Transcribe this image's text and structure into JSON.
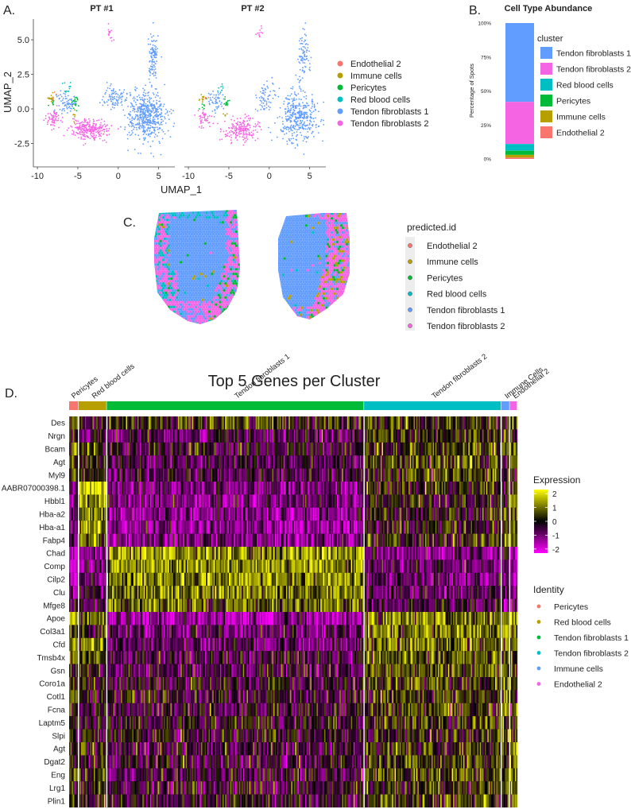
{
  "panel_labels": {
    "a": "A.",
    "b": "B.",
    "c": "C.",
    "d": "D."
  },
  "colors": {
    "endothelial": "#F8766D",
    "immune": "#B79F00",
    "pericytes": "#00BA38",
    "rbc": "#00BFC4",
    "tf1": "#619CFF",
    "tf2": "#F564E3",
    "heat_low": "#FF00FF",
    "heat_mid": "#000000",
    "heat_high": "#FFFF00"
  },
  "chart_data": [
    {
      "id": "umap",
      "type": "scatter",
      "facets": [
        "PT #1",
        "PT #2"
      ],
      "xlabel": "UMAP_1",
      "ylabel": "UMAP_2",
      "xticks": [
        -10,
        -5,
        0,
        5
      ],
      "yticks": [
        5.0,
        2.5,
        0.0,
        -2.5
      ],
      "xticks_labels": [
        "-10",
        "-5",
        "0",
        "5"
      ],
      "yticks_labels": [
        "5.0",
        "2.5",
        "0.0",
        "-2.5"
      ],
      "xlim": [
        -10.5,
        7
      ],
      "ylim": [
        -4.2,
        6.5
      ],
      "legend": [
        "Endothelial 2",
        "Immune cells",
        "Pericytes",
        "Red blood cells",
        "Tendon fibroblasts 1",
        "Tendon fibroblasts 2"
      ],
      "clusters": [
        {
          "name": "Tendon fibroblasts 1",
          "color": "tf1",
          "centers": [
            [
              3.5,
              -0.5
            ],
            [
              -6.5,
              0.5
            ],
            [
              4.3,
              3.8
            ],
            [
              -0.5,
              0.8
            ]
          ],
          "spread": [
            [
              2.2,
              1.6
            ],
            [
              1.0,
              0.7
            ],
            [
              0.6,
              1.5
            ],
            [
              1.2,
              0.8
            ]
          ],
          "n": [
            520,
            70,
            110,
            90
          ]
        },
        {
          "name": "Tendon fibroblasts 2",
          "color": "tf2",
          "centers": [
            [
              -3.5,
              -1.5
            ],
            [
              -8.0,
              -0.8
            ],
            [
              -1.0,
              5.5
            ]
          ],
          "spread": [
            [
              2.2,
              0.7
            ],
            [
              0.8,
              0.6
            ],
            [
              0.4,
              0.5
            ]
          ],
          "n": [
            260,
            60,
            15
          ]
        },
        {
          "name": "Pericytes",
          "color": "pericytes",
          "centers": [
            [
              -5.3,
              0.5
            ],
            [
              -8.2,
              0.4
            ]
          ],
          "spread": [
            [
              0.35,
              0.4
            ],
            [
              0.4,
              0.3
            ]
          ],
          "n": [
            18,
            10
          ]
        },
        {
          "name": "Immune cells",
          "color": "immune",
          "centers": [
            [
              -8.3,
              0.8
            ],
            [
              -5.5,
              -0.5
            ]
          ],
          "spread": [
            [
              0.4,
              0.3
            ],
            [
              0.3,
              0.4
            ]
          ],
          "n": [
            14,
            8
          ]
        },
        {
          "name": "Red blood cells",
          "color": "rbc",
          "centers": [
            [
              -6.3,
              1.5
            ]
          ],
          "spread": [
            [
              0.5,
              0.5
            ]
          ],
          "n": [
            12
          ]
        },
        {
          "name": "Endothelial 2",
          "color": "endothelial",
          "centers": [
            [
              -7.8,
              0.9
            ]
          ],
          "spread": [
            [
              0.3,
              0.3
            ]
          ],
          "n": [
            4
          ]
        }
      ]
    },
    {
      "id": "abundance",
      "type": "bar",
      "stacked": true,
      "title": "Cell Type Abundance",
      "ylabel": "Percentage of Spots",
      "yticks": [
        "100%",
        "75%",
        "50%",
        "25%",
        "0%"
      ],
      "legend_title": "cluster",
      "series": [
        {
          "name": "Tendon fibroblasts 1",
          "color": "tf1",
          "value": 58
        },
        {
          "name": "Tendon fibroblasts 2",
          "color": "tf2",
          "value": 31
        },
        {
          "name": "Red blood cells",
          "color": "rbc",
          "value": 5
        },
        {
          "name": "Pericytes",
          "color": "pericytes",
          "value": 3
        },
        {
          "name": "Immune cells",
          "color": "immune",
          "value": 2
        },
        {
          "name": "Endothelial 2",
          "color": "endothelial",
          "value": 1
        }
      ]
    },
    {
      "id": "spatial",
      "type": "scatter",
      "legend_title": "predicted.id",
      "legend": [
        "Endothelial 2",
        "Immune cells",
        "Pericytes",
        "Red blood cells",
        "Tendon fibroblasts 1",
        "Tendon fibroblasts 2"
      ]
    },
    {
      "id": "heatmap",
      "type": "heatmap",
      "title": "Top 5 Genes per Cluster",
      "genes": [
        "Des",
        "Nrgn",
        "Bcam",
        "Agt",
        "Myl9",
        "AABR07000398.1",
        "Hbbl1",
        "Hba-a2",
        "Hba-a1",
        "Fabp4",
        "Chad",
        "Comp",
        "Cilp2",
        "Clu",
        "Mfge8",
        "Apoe",
        "Col3a1",
        "Cfd",
        "Tmsb4x",
        "Gsn",
        "Coro1a",
        "Cotl1",
        "Fcna",
        "Laptm5",
        "Slpi",
        "Agt",
        "Dgat2",
        "Eng",
        "Lrg1",
        "Plin1"
      ],
      "identity_groups": [
        {
          "name": "Pericytes",
          "color": "endothelial",
          "fraction": 0.021
        },
        {
          "name": "Red blood cells",
          "color": "immune",
          "fraction": 0.063
        },
        {
          "name": "Tendon fibroblasts 1",
          "color": "pericytes",
          "fraction": 0.574
        },
        {
          "name": "Tendon fibroblasts 2",
          "color": "rbc",
          "fraction": 0.306
        },
        {
          "name": "Immune Cells",
          "color": "tf1",
          "fraction": 0.019
        },
        {
          "name": "Endothelial 2",
          "color": "tf2",
          "fraction": 0.017
        }
      ],
      "group_means": [
        [
          0.3,
          -0.2,
          0.2,
          0.3,
          0.1,
          0.4
        ],
        [
          0.1,
          -0.5,
          -0.6,
          0.3,
          0.1,
          0.1
        ],
        [
          0.6,
          0.3,
          -0.4,
          0.4,
          0.4,
          0.6
        ],
        [
          0.4,
          0.1,
          -0.6,
          0.4,
          0.2,
          0.6
        ],
        [
          0.5,
          0.3,
          -0.5,
          0.4,
          0.3,
          0.6
        ],
        [
          -0.8,
          2.0,
          -1.0,
          0.2,
          0.1,
          0.2
        ],
        [
          -0.7,
          1.2,
          -0.9,
          0.0,
          0.2,
          0.8
        ],
        [
          -0.9,
          1.1,
          -1.1,
          0.0,
          0.3,
          0.8
        ],
        [
          -0.9,
          1.1,
          -1.2,
          0.0,
          0.3,
          0.8
        ],
        [
          -0.7,
          1.0,
          -1.0,
          0.2,
          0.2,
          1.1
        ],
        [
          -2.0,
          -1.0,
          1.3,
          -1.0,
          -1.0,
          -2.0
        ],
        [
          -1.6,
          -0.8,
          1.3,
          -0.7,
          -0.8,
          -1.2
        ],
        [
          -1.5,
          -0.8,
          1.1,
          -0.8,
          -0.8,
          -1.4
        ],
        [
          -1.0,
          -0.6,
          1.0,
          -0.6,
          -0.6,
          -0.8
        ],
        [
          -0.8,
          -0.5,
          0.9,
          -0.5,
          -0.6,
          -0.8
        ],
        [
          1.6,
          0.9,
          -1.4,
          1.0,
          1.0,
          1.6
        ],
        [
          0.5,
          0.3,
          -0.8,
          1.0,
          0.8,
          0.8
        ],
        [
          1.6,
          1.0,
          -0.8,
          0.8,
          0.8,
          1.4
        ],
        [
          0.9,
          0.6,
          -0.4,
          0.7,
          0.6,
          0.9
        ],
        [
          0.5,
          0.3,
          -0.5,
          0.6,
          0.5,
          0.5
        ],
        [
          0.4,
          0.0,
          -0.3,
          0.4,
          1.0,
          0.3
        ],
        [
          0.4,
          0.0,
          -0.2,
          0.3,
          0.8,
          0.3
        ],
        [
          0.4,
          0.0,
          -0.3,
          0.3,
          0.8,
          0.3
        ],
        [
          0.3,
          0.0,
          -0.2,
          0.3,
          0.8,
          0.3
        ],
        [
          0.1,
          -0.1,
          -0.1,
          0.1,
          0.5,
          0.1
        ],
        [
          0.2,
          0.2,
          -0.3,
          0.3,
          0.6,
          1.2
        ],
        [
          0.3,
          0.1,
          -0.3,
          0.3,
          0.5,
          1.0
        ],
        [
          0.4,
          0.1,
          -0.4,
          0.4,
          0.5,
          1.0
        ],
        [
          0.3,
          0.1,
          -0.3,
          0.3,
          0.5,
          0.9
        ],
        [
          0.3,
          0.1,
          -0.3,
          0.4,
          0.5,
          1.0
        ]
      ],
      "scale": {
        "min": -2.3,
        "max": 2.3
      },
      "expression_title": "Expression",
      "expression_ticks": [
        "2",
        "1",
        "0",
        "-1",
        "-2"
      ],
      "identity_title": "Identity",
      "identity_legend": [
        "Pericytes",
        "Red blood cells",
        "Tendon fibroblasts 1",
        "Tendon fibroblasts 2",
        "Immune cells",
        "Endothelial 2"
      ]
    }
  ]
}
